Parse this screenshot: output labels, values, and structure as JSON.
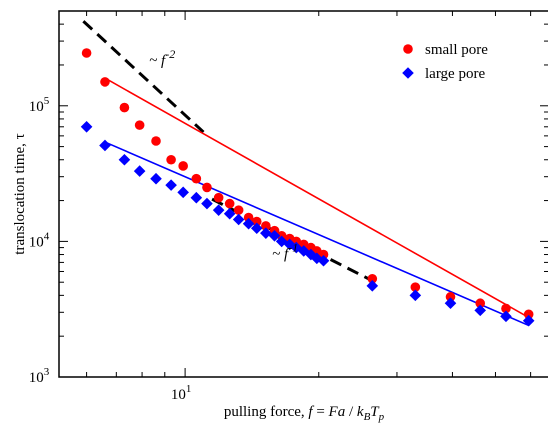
{
  "chart_data": {
    "type": "scatter",
    "xscale": "log",
    "yscale": "log",
    "xlim": [
      5.2,
      66
    ],
    "ylim": [
      1000,
      500000
    ],
    "xlabel": "pulling force, f = Fa / k_B T_p",
    "ylabel": "translocation time, τ",
    "x_ticks": [
      {
        "value": 10,
        "label": "10",
        "exp": "1"
      }
    ],
    "y_ticks": [
      {
        "value": 1000,
        "label": "10",
        "exp": "3"
      },
      {
        "value": 10000,
        "label": "10",
        "exp": "4"
      },
      {
        "value": 100000,
        "label": "10",
        "exp": "5"
      }
    ],
    "legend_position": "top-right",
    "grid": false,
    "series": [
      {
        "name": "small pore",
        "color": "#ff0000",
        "marker": "circle",
        "x": [
          6.0,
          6.6,
          7.3,
          7.9,
          8.6,
          9.3,
          9.9,
          10.6,
          11.2,
          11.9,
          12.6,
          13.2,
          13.9,
          14.5,
          15.2,
          15.9,
          16.5,
          17.2,
          17.8,
          18.5,
          19.2,
          19.8,
          20.5,
          26.4,
          33.0,
          39.6,
          46.2,
          52.8,
          59.4
        ],
        "y": [
          245000,
          150000,
          97000,
          72000,
          55000,
          40000,
          36000,
          29000,
          25000,
          21000,
          19000,
          17000,
          15000,
          14000,
          13000,
          12000,
          11000,
          10500,
          10000,
          9500,
          9000,
          8500,
          8000,
          5300,
          4600,
          3900,
          3500,
          3200,
          2900
        ]
      },
      {
        "name": "large pore",
        "color": "#0000ff",
        "marker": "diamond",
        "x": [
          6.0,
          6.6,
          7.3,
          7.9,
          8.6,
          9.3,
          9.9,
          10.6,
          11.2,
          11.9,
          12.6,
          13.2,
          13.9,
          14.5,
          15.2,
          15.9,
          16.5,
          17.2,
          17.8,
          18.5,
          19.2,
          19.8,
          20.5,
          26.4,
          33.0,
          39.6,
          46.2,
          52.8,
          59.4
        ],
        "y": [
          70000,
          51000,
          40000,
          33000,
          29000,
          26000,
          23000,
          21000,
          19000,
          17000,
          16000,
          14500,
          13500,
          12500,
          11500,
          11000,
          10000,
          9500,
          9000,
          8500,
          8000,
          7500,
          7200,
          4700,
          4000,
          3500,
          3100,
          2800,
          2600
        ]
      }
    ],
    "fit_lines": [
      {
        "series": "small pore",
        "color": "#ff0000",
        "x": [
          6.6,
          59.4
        ],
        "y": [
          160000,
          2750
        ]
      },
      {
        "series": "large pore",
        "color": "#0000ff",
        "x": [
          6.6,
          59.4
        ],
        "y": [
          54000,
          2400
        ]
      }
    ],
    "guide_lines": [
      {
        "name": "slope -2",
        "color": "#000000",
        "dash": true,
        "x": [
          5.9,
          11.0
        ],
        "y": [
          420000,
          64000
        ]
      },
      {
        "name": "slope -1",
        "color": "#000000",
        "dash": true,
        "x": [
          11.5,
          26.8
        ],
        "y": [
          20500,
          5000
        ]
      }
    ],
    "annotations": [
      {
        "text": "~ f",
        "sup": "-2",
        "x": 8.3,
        "y": 200000
      },
      {
        "text": "~ f",
        "sup": "-1",
        "x": 15.7,
        "y": 7500
      }
    ]
  }
}
